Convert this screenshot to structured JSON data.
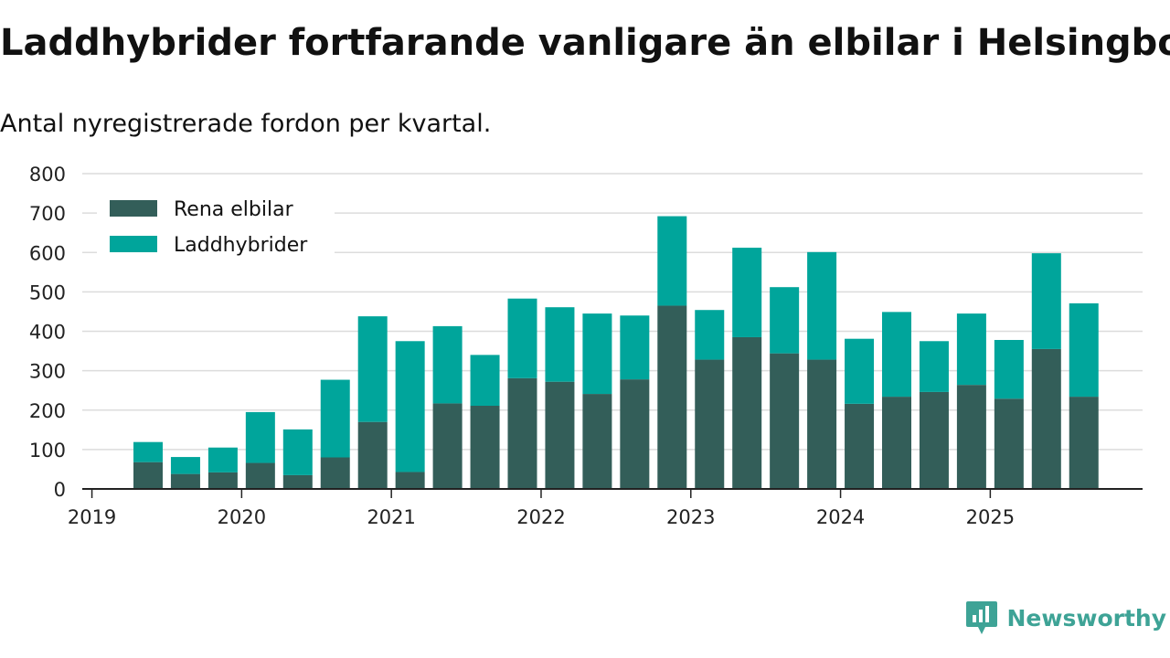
{
  "header": {
    "title": "Laddhybrider fortfarande vanligare än elbilar i Helsingborg",
    "subtitle": "Antal nyregistrerade fordon per kvartal."
  },
  "brand": {
    "name": "Newsworthy",
    "color": "#3ea396"
  },
  "colors": {
    "elbilar": "#335e59",
    "laddhybrider": "#00a59b",
    "grid": "#dcdcdc",
    "axis": "#222222"
  },
  "chart_data": {
    "type": "bar",
    "stacked": true,
    "title": "Laddhybrider fortfarande vanligare än elbilar i Helsingborg",
    "subtitle": "Antal nyregistrerade fordon per kvartal.",
    "xlabel": "",
    "ylabel": "",
    "ylim": [
      0,
      800
    ],
    "yticks": [
      0,
      100,
      200,
      300,
      400,
      500,
      600,
      700,
      800
    ],
    "xticks": [
      "2019",
      "2020",
      "2021",
      "2022",
      "2023",
      "2024",
      "2025"
    ],
    "legend_position": "top-left",
    "categories": [
      "2019 Q2",
      "2019 Q3",
      "2019 Q4",
      "2020 Q1",
      "2020 Q2",
      "2020 Q3",
      "2020 Q4",
      "2021 Q1",
      "2021 Q2",
      "2021 Q3",
      "2021 Q4",
      "2022 Q1",
      "2022 Q2",
      "2022 Q3",
      "2022 Q4",
      "2023 Q1",
      "2023 Q2",
      "2023 Q3",
      "2023 Q4",
      "2024 Q1",
      "2024 Q2",
      "2024 Q3",
      "2024 Q4",
      "2025 Q1",
      "2025 Q2",
      "2025 Q3"
    ],
    "series": [
      {
        "name": "Rena elbilar",
        "values": [
          68,
          38,
          42,
          66,
          35,
          80,
          170,
          43,
          217,
          211,
          281,
          272,
          241,
          278,
          465,
          328,
          385,
          344,
          328,
          216,
          234,
          246,
          264,
          229,
          355,
          234
        ]
      },
      {
        "name": "Laddhybrider",
        "values": [
          51,
          43,
          63,
          129,
          116,
          197,
          268,
          332,
          196,
          129,
          202,
          189,
          204,
          162,
          227,
          126,
          227,
          168,
          273,
          165,
          215,
          129,
          181,
          149,
          243,
          237
        ]
      }
    ]
  }
}
